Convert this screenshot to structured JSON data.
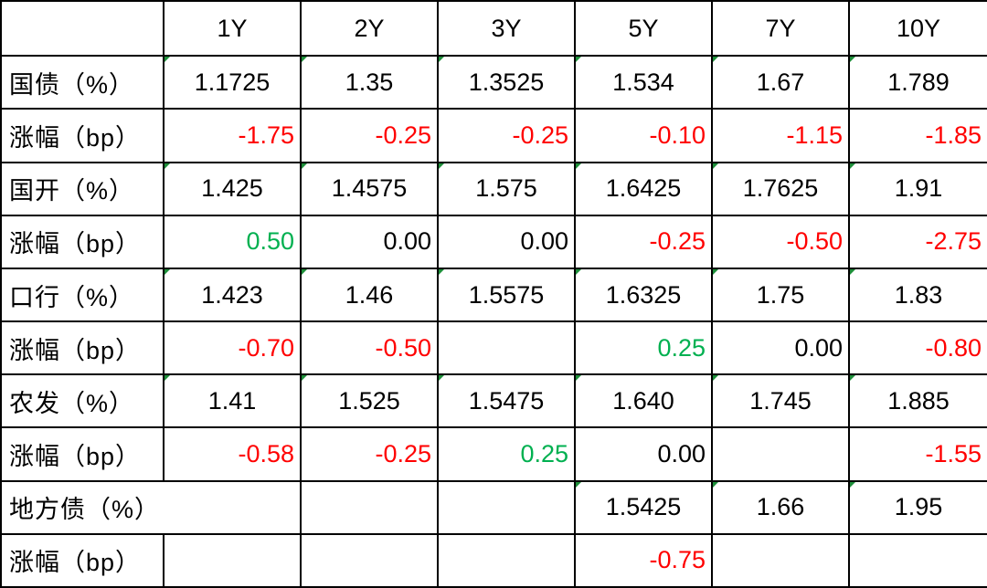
{
  "table": {
    "columns": [
      "1Y",
      "2Y",
      "3Y",
      "5Y",
      "7Y",
      "10Y"
    ],
    "rows": [
      {
        "label": "国债（%）",
        "cells": [
          "1.1725",
          "1.35",
          "1.3525",
          "1.534",
          "1.67",
          "1.789"
        ]
      },
      {
        "label": "涨幅（bp）",
        "cells": [
          "-1.75",
          "-0.25",
          "-0.25",
          "-0.10",
          "-1.15",
          "-1.85"
        ]
      },
      {
        "label": "国开（%）",
        "cells": [
          "1.425",
          "1.4575",
          "1.575",
          "1.6425",
          "1.7625",
          "1.91"
        ]
      },
      {
        "label": "涨幅（bp）",
        "cells": [
          "0.50",
          "0.00",
          "0.00",
          "-0.25",
          "-0.50",
          "-2.75"
        ]
      },
      {
        "label": "口行（%）",
        "cells": [
          "1.423",
          "1.46",
          "1.5575",
          "1.6325",
          "1.75",
          "1.83"
        ]
      },
      {
        "label": "涨幅（bp）",
        "cells": [
          "-0.70",
          "-0.50",
          null,
          "0.25",
          "0.00",
          "-0.80"
        ]
      },
      {
        "label": "农发（%）",
        "cells": [
          "1.41",
          "1.525",
          "1.5475",
          "1.640",
          "1.745",
          "1.885"
        ]
      },
      {
        "label": "涨幅（bp）",
        "cells": [
          "-0.58",
          "-0.25",
          "0.25",
          "0.00",
          null,
          "-1.55"
        ]
      },
      {
        "label": "地方债（%）",
        "cells": [
          null,
          null,
          null,
          "1.5425",
          "1.66",
          "1.95"
        ]
      },
      {
        "label": "涨幅（bp）",
        "cells": [
          null,
          null,
          null,
          "-0.75",
          null,
          null
        ]
      }
    ]
  }
}
